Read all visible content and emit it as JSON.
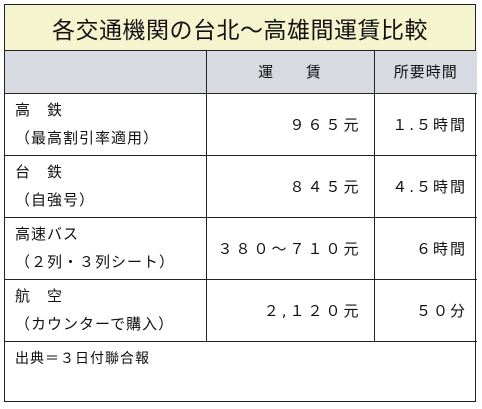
{
  "title": "各交通機関の台北〜高雄間運賃比較",
  "columns": {
    "mode": "",
    "fare": "運 賃",
    "time": "所要時間"
  },
  "rows": [
    {
      "name": "高　鉄",
      "note": "（最高割引率適用）",
      "fare": "９６５元",
      "time": "１.５時間"
    },
    {
      "name": "台　鉄",
      "note": "（自強号）",
      "fare": "８４５元",
      "time": "４.５時間"
    },
    {
      "name": "高速バス",
      "note": "（２列・３列シート）",
      "fare": "３８０〜７１０元",
      "time": "６時間"
    },
    {
      "name": "航　空",
      "note": "（カウンターで購入）",
      "fare": "２,１２０元",
      "time": "５０分"
    }
  ],
  "source": "出典＝３日付聯合報",
  "colors": {
    "title_bg": "#f6f4cf",
    "header_bg": "#d7dbe1",
    "border": "#222222"
  }
}
